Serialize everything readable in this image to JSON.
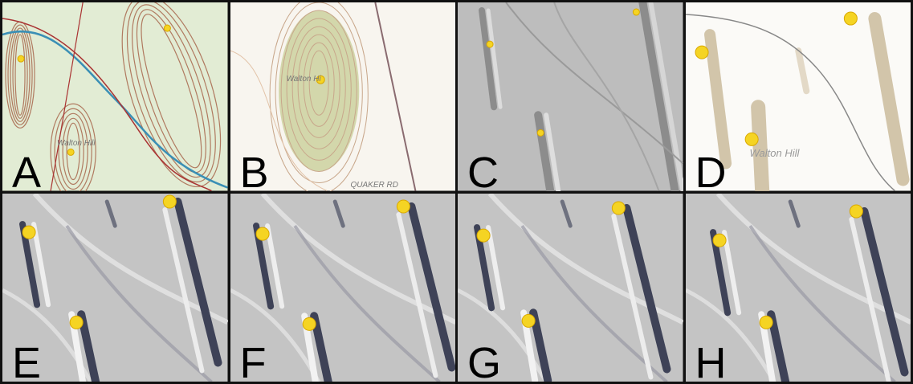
{
  "panels": [
    {
      "label": "A",
      "texts": [
        "Walton Hill"
      ]
    },
    {
      "label": "B",
      "texts": [
        "Walton Hi",
        "QUAKER RD"
      ]
    },
    {
      "label": "C",
      "texts": []
    },
    {
      "label": "D",
      "texts": [
        "Walton Hill"
      ]
    },
    {
      "label": "E",
      "texts": []
    },
    {
      "label": "F",
      "texts": []
    },
    {
      "label": "G",
      "texts": []
    },
    {
      "label": "H",
      "texts": []
    }
  ]
}
